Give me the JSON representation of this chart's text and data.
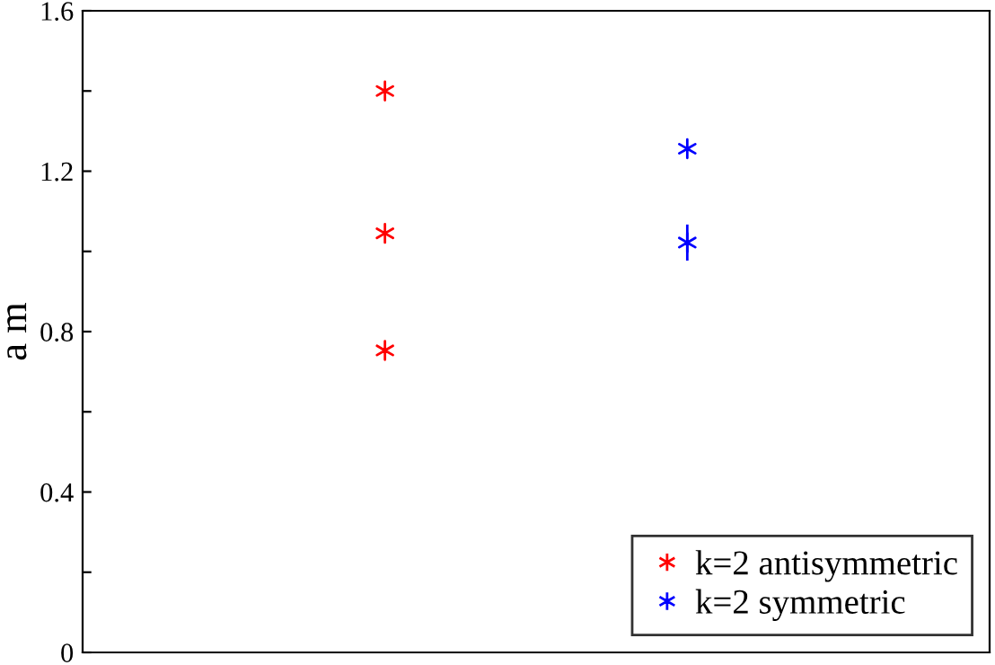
{
  "chart_data": {
    "type": "scatter",
    "ylabel": "a m",
    "categories": [
      null,
      null
    ],
    "ylim": [
      0,
      1.6
    ],
    "yticks": [
      0,
      {
        "value": 0.2,
        "label": null
      },
      0.4,
      {
        "value": 0.6,
        "label": null
      },
      0.8,
      {
        "value": 1.0,
        "label": null
      },
      1.2,
      {
        "value": 1.4,
        "label": null
      },
      1.6
    ],
    "legend": "bottom right",
    "marker": "cross",
    "series": [
      {
        "name": "k=2 antisymmetric",
        "color": "#ff0000",
        "values": [
          1.4,
          null
        ]
      },
      {
        "color": "#ff0000",
        "values": [
          1.045,
          null
        ]
      },
      {
        "color": "#ff0000",
        "values": [
          0.753,
          null
        ]
      },
      {
        "name": "k=2 symmetric",
        "color": "#0000ff",
        "values": [
          null,
          1.256
        ]
      },
      {
        "color": "#0000ff",
        "values": [
          null,
          1.022
        ],
        "errors": [
          null,
          0.045
        ]
      }
    ]
  }
}
